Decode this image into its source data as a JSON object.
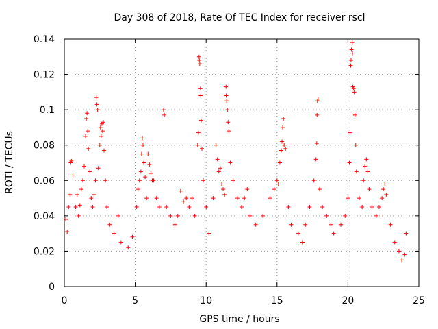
{
  "chart_data": {
    "type": "scatter",
    "title": "Day 308 of 2018, Rate Of TEC Index for receiver rscl",
    "xlabel": "GPS time / hours",
    "ylabel": "ROTI / TECUs",
    "xlim": [
      0,
      25
    ],
    "ylim": [
      0,
      0.14
    ],
    "x_ticks": [
      0,
      5,
      10,
      15,
      20,
      25
    ],
    "y_ticks": [
      0,
      0.02,
      0.04,
      0.06,
      0.08,
      0.1,
      0.12,
      0.14
    ],
    "x_tick_labels": [
      "0",
      "5",
      "10",
      "15",
      "20",
      "25"
    ],
    "y_tick_labels": [
      "0",
      "0.02",
      "0.04",
      "0.06",
      "0.08",
      "0.1",
      "0.12",
      "0.14"
    ],
    "grid": true,
    "marker": "+",
    "color": "#ff0000",
    "series": [
      {
        "name": "ROTI",
        "points": [
          [
            0.1,
            0.038
          ],
          [
            0.2,
            0.031
          ],
          [
            0.3,
            0.045
          ],
          [
            0.4,
            0.052
          ],
          [
            0.45,
            0.07
          ],
          [
            0.5,
            0.071
          ],
          [
            0.6,
            0.063
          ],
          [
            0.8,
            0.045
          ],
          [
            0.9,
            0.052
          ],
          [
            1.0,
            0.04
          ],
          [
            1.1,
            0.046
          ],
          [
            1.2,
            0.055
          ],
          [
            1.3,
            0.06
          ],
          [
            1.4,
            0.068
          ],
          [
            1.5,
            0.085
          ],
          [
            1.55,
            0.095
          ],
          [
            1.6,
            0.098
          ],
          [
            1.65,
            0.088
          ],
          [
            1.7,
            0.078
          ],
          [
            1.8,
            0.065
          ],
          [
            1.9,
            0.05
          ],
          [
            2.0,
            0.045
          ],
          [
            2.1,
            0.052
          ],
          [
            2.2,
            0.06
          ],
          [
            2.25,
            0.107
          ],
          [
            2.3,
            0.103
          ],
          [
            2.35,
            0.1
          ],
          [
            2.4,
            0.067
          ],
          [
            2.5,
            0.08
          ],
          [
            2.55,
            0.09
          ],
          [
            2.6,
            0.085
          ],
          [
            2.65,
            0.092
          ],
          [
            2.7,
            0.088
          ],
          [
            2.75,
            0.093
          ],
          [
            2.8,
            0.077
          ],
          [
            2.9,
            0.06
          ],
          [
            3.0,
            0.045
          ],
          [
            3.2,
            0.035
          ],
          [
            3.5,
            0.03
          ],
          [
            3.8,
            0.04
          ],
          [
            4.0,
            0.025
          ],
          [
            4.5,
            0.022
          ],
          [
            4.8,
            0.028
          ],
          [
            5.1,
            0.045
          ],
          [
            5.2,
            0.055
          ],
          [
            5.3,
            0.06
          ],
          [
            5.4,
            0.065
          ],
          [
            5.45,
            0.075
          ],
          [
            5.5,
            0.084
          ],
          [
            5.55,
            0.08
          ],
          [
            5.6,
            0.07
          ],
          [
            5.7,
            0.062
          ],
          [
            5.8,
            0.05
          ],
          [
            5.9,
            0.075
          ],
          [
            6.0,
            0.069
          ],
          [
            6.1,
            0.064
          ],
          [
            6.2,
            0.06
          ],
          [
            6.3,
            0.06
          ],
          [
            6.5,
            0.05
          ],
          [
            6.7,
            0.045
          ],
          [
            7.0,
            0.1
          ],
          [
            7.05,
            0.097
          ],
          [
            7.2,
            0.045
          ],
          [
            7.5,
            0.04
          ],
          [
            7.8,
            0.035
          ],
          [
            8.0,
            0.04
          ],
          [
            8.2,
            0.054
          ],
          [
            8.4,
            0.048
          ],
          [
            8.6,
            0.05
          ],
          [
            8.8,
            0.045
          ],
          [
            9.0,
            0.05
          ],
          [
            9.2,
            0.04
          ],
          [
            9.4,
            0.08
          ],
          [
            9.45,
            0.087
          ],
          [
            9.5,
            0.13
          ],
          [
            9.52,
            0.128
          ],
          [
            9.55,
            0.126
          ],
          [
            9.6,
            0.112
          ],
          [
            9.62,
            0.108
          ],
          [
            9.65,
            0.094
          ],
          [
            9.7,
            0.078
          ],
          [
            9.8,
            0.06
          ],
          [
            10.0,
            0.045
          ],
          [
            10.2,
            0.03
          ],
          [
            10.5,
            0.05
          ],
          [
            10.7,
            0.08
          ],
          [
            10.8,
            0.072
          ],
          [
            10.9,
            0.065
          ],
          [
            11.0,
            0.067
          ],
          [
            11.1,
            0.058
          ],
          [
            11.2,
            0.055
          ],
          [
            11.3,
            0.052
          ],
          [
            11.4,
            0.113
          ],
          [
            11.42,
            0.108
          ],
          [
            11.45,
            0.105
          ],
          [
            11.5,
            0.1
          ],
          [
            11.55,
            0.093
          ],
          [
            11.6,
            0.088
          ],
          [
            11.7,
            0.07
          ],
          [
            11.9,
            0.06
          ],
          [
            12.2,
            0.05
          ],
          [
            12.5,
            0.045
          ],
          [
            12.7,
            0.05
          ],
          [
            12.9,
            0.055
          ],
          [
            13.1,
            0.04
          ],
          [
            13.5,
            0.035
          ],
          [
            14.0,
            0.04
          ],
          [
            14.5,
            0.05
          ],
          [
            14.8,
            0.055
          ],
          [
            15.0,
            0.06
          ],
          [
            15.1,
            0.058
          ],
          [
            15.2,
            0.07
          ],
          [
            15.3,
            0.077
          ],
          [
            15.35,
            0.082
          ],
          [
            15.4,
            0.09
          ],
          [
            15.45,
            0.095
          ],
          [
            15.5,
            0.08
          ],
          [
            15.6,
            0.078
          ],
          [
            15.8,
            0.045
          ],
          [
            16.0,
            0.035
          ],
          [
            16.5,
            0.03
          ],
          [
            16.8,
            0.025
          ],
          [
            17.0,
            0.035
          ],
          [
            17.3,
            0.045
          ],
          [
            17.6,
            0.06
          ],
          [
            17.75,
            0.072
          ],
          [
            17.8,
            0.081
          ],
          [
            17.82,
            0.097
          ],
          [
            17.85,
            0.105
          ],
          [
            17.9,
            0.106
          ],
          [
            18.0,
            0.055
          ],
          [
            18.2,
            0.045
          ],
          [
            18.5,
            0.04
          ],
          [
            18.8,
            0.035
          ],
          [
            19.0,
            0.03
          ],
          [
            19.5,
            0.035
          ],
          [
            19.8,
            0.04
          ],
          [
            20.0,
            0.05
          ],
          [
            20.1,
            0.07
          ],
          [
            20.15,
            0.087
          ],
          [
            20.2,
            0.125
          ],
          [
            20.22,
            0.128
          ],
          [
            20.25,
            0.134
          ],
          [
            20.3,
            0.138
          ],
          [
            20.32,
            0.132
          ],
          [
            20.35,
            0.113
          ],
          [
            20.4,
            0.112
          ],
          [
            20.45,
            0.11
          ],
          [
            20.5,
            0.097
          ],
          [
            20.55,
            0.08
          ],
          [
            20.6,
            0.065
          ],
          [
            20.8,
            0.05
          ],
          [
            21.0,
            0.045
          ],
          [
            21.1,
            0.06
          ],
          [
            21.2,
            0.068
          ],
          [
            21.3,
            0.072
          ],
          [
            21.4,
            0.065
          ],
          [
            21.5,
            0.055
          ],
          [
            21.7,
            0.045
          ],
          [
            22.0,
            0.04
          ],
          [
            22.2,
            0.045
          ],
          [
            22.4,
            0.05
          ],
          [
            22.5,
            0.055
          ],
          [
            22.6,
            0.058
          ],
          [
            22.7,
            0.052
          ],
          [
            23.0,
            0.035
          ],
          [
            23.3,
            0.025
          ],
          [
            23.6,
            0.02
          ],
          [
            23.8,
            0.015
          ],
          [
            24.0,
            0.018
          ],
          [
            24.1,
            0.03
          ]
        ]
      }
    ]
  }
}
